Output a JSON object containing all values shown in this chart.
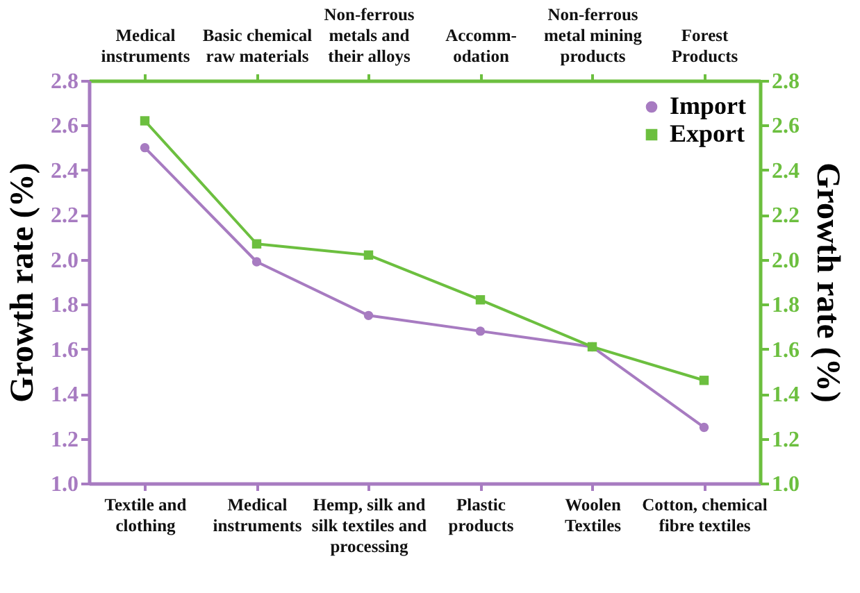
{
  "chart_data": {
    "type": "line",
    "ylabel": "Growth rate (%)",
    "y2label": "Growth rate (%)",
    "categories": [
      "Textile and\nclothing",
      "Medical\ninstruments",
      "Hemp, silk and\nsilk textiles and\nprocessing",
      "Plastic\nproducts",
      "Woolen\nTextiles",
      "Cotton, chemical\nfibre textiles"
    ],
    "ylim": [
      1.0,
      2.8
    ],
    "yticks": [
      {
        "value": 1,
        "label": "1.0"
      },
      1.2,
      1.4,
      1.6,
      1.8,
      {
        "value": 2,
        "label": "2.0"
      },
      2.2,
      2.4,
      2.6,
      2.8
    ],
    "y2lim": [
      1.0,
      2.8
    ],
    "y2ticks": [
      {
        "value": 1,
        "label": "1.0"
      },
      1.2,
      1.4,
      1.6,
      1.8,
      {
        "value": 2,
        "label": "2.0"
      },
      2.2,
      2.4,
      2.6,
      2.8
    ],
    "legend": "top right",
    "grid": false,
    "series": [
      {
        "name": "Import",
        "color": "#a77bc1",
        "marker": "circle",
        "values": [
          2.5,
          1.99,
          1.75,
          1.68,
          1.61,
          1.25
        ]
      },
      {
        "name": "Export",
        "color": "#6cbf3f",
        "marker": "square",
        "axis": "y2",
        "values": [
          2.62,
          2.07,
          2.02,
          1.82,
          1.61,
          1.46
        ]
      }
    ],
    "annotations": [
      "Medical\ninstruments",
      "Basic chemical\nraw materials",
      "Non-ferrous\nmetals and\ntheir alloys",
      "Accomm-\nodation",
      "Non-ferrous\nmetal mining\nproducts",
      "Forest\nProducts"
    ]
  }
}
